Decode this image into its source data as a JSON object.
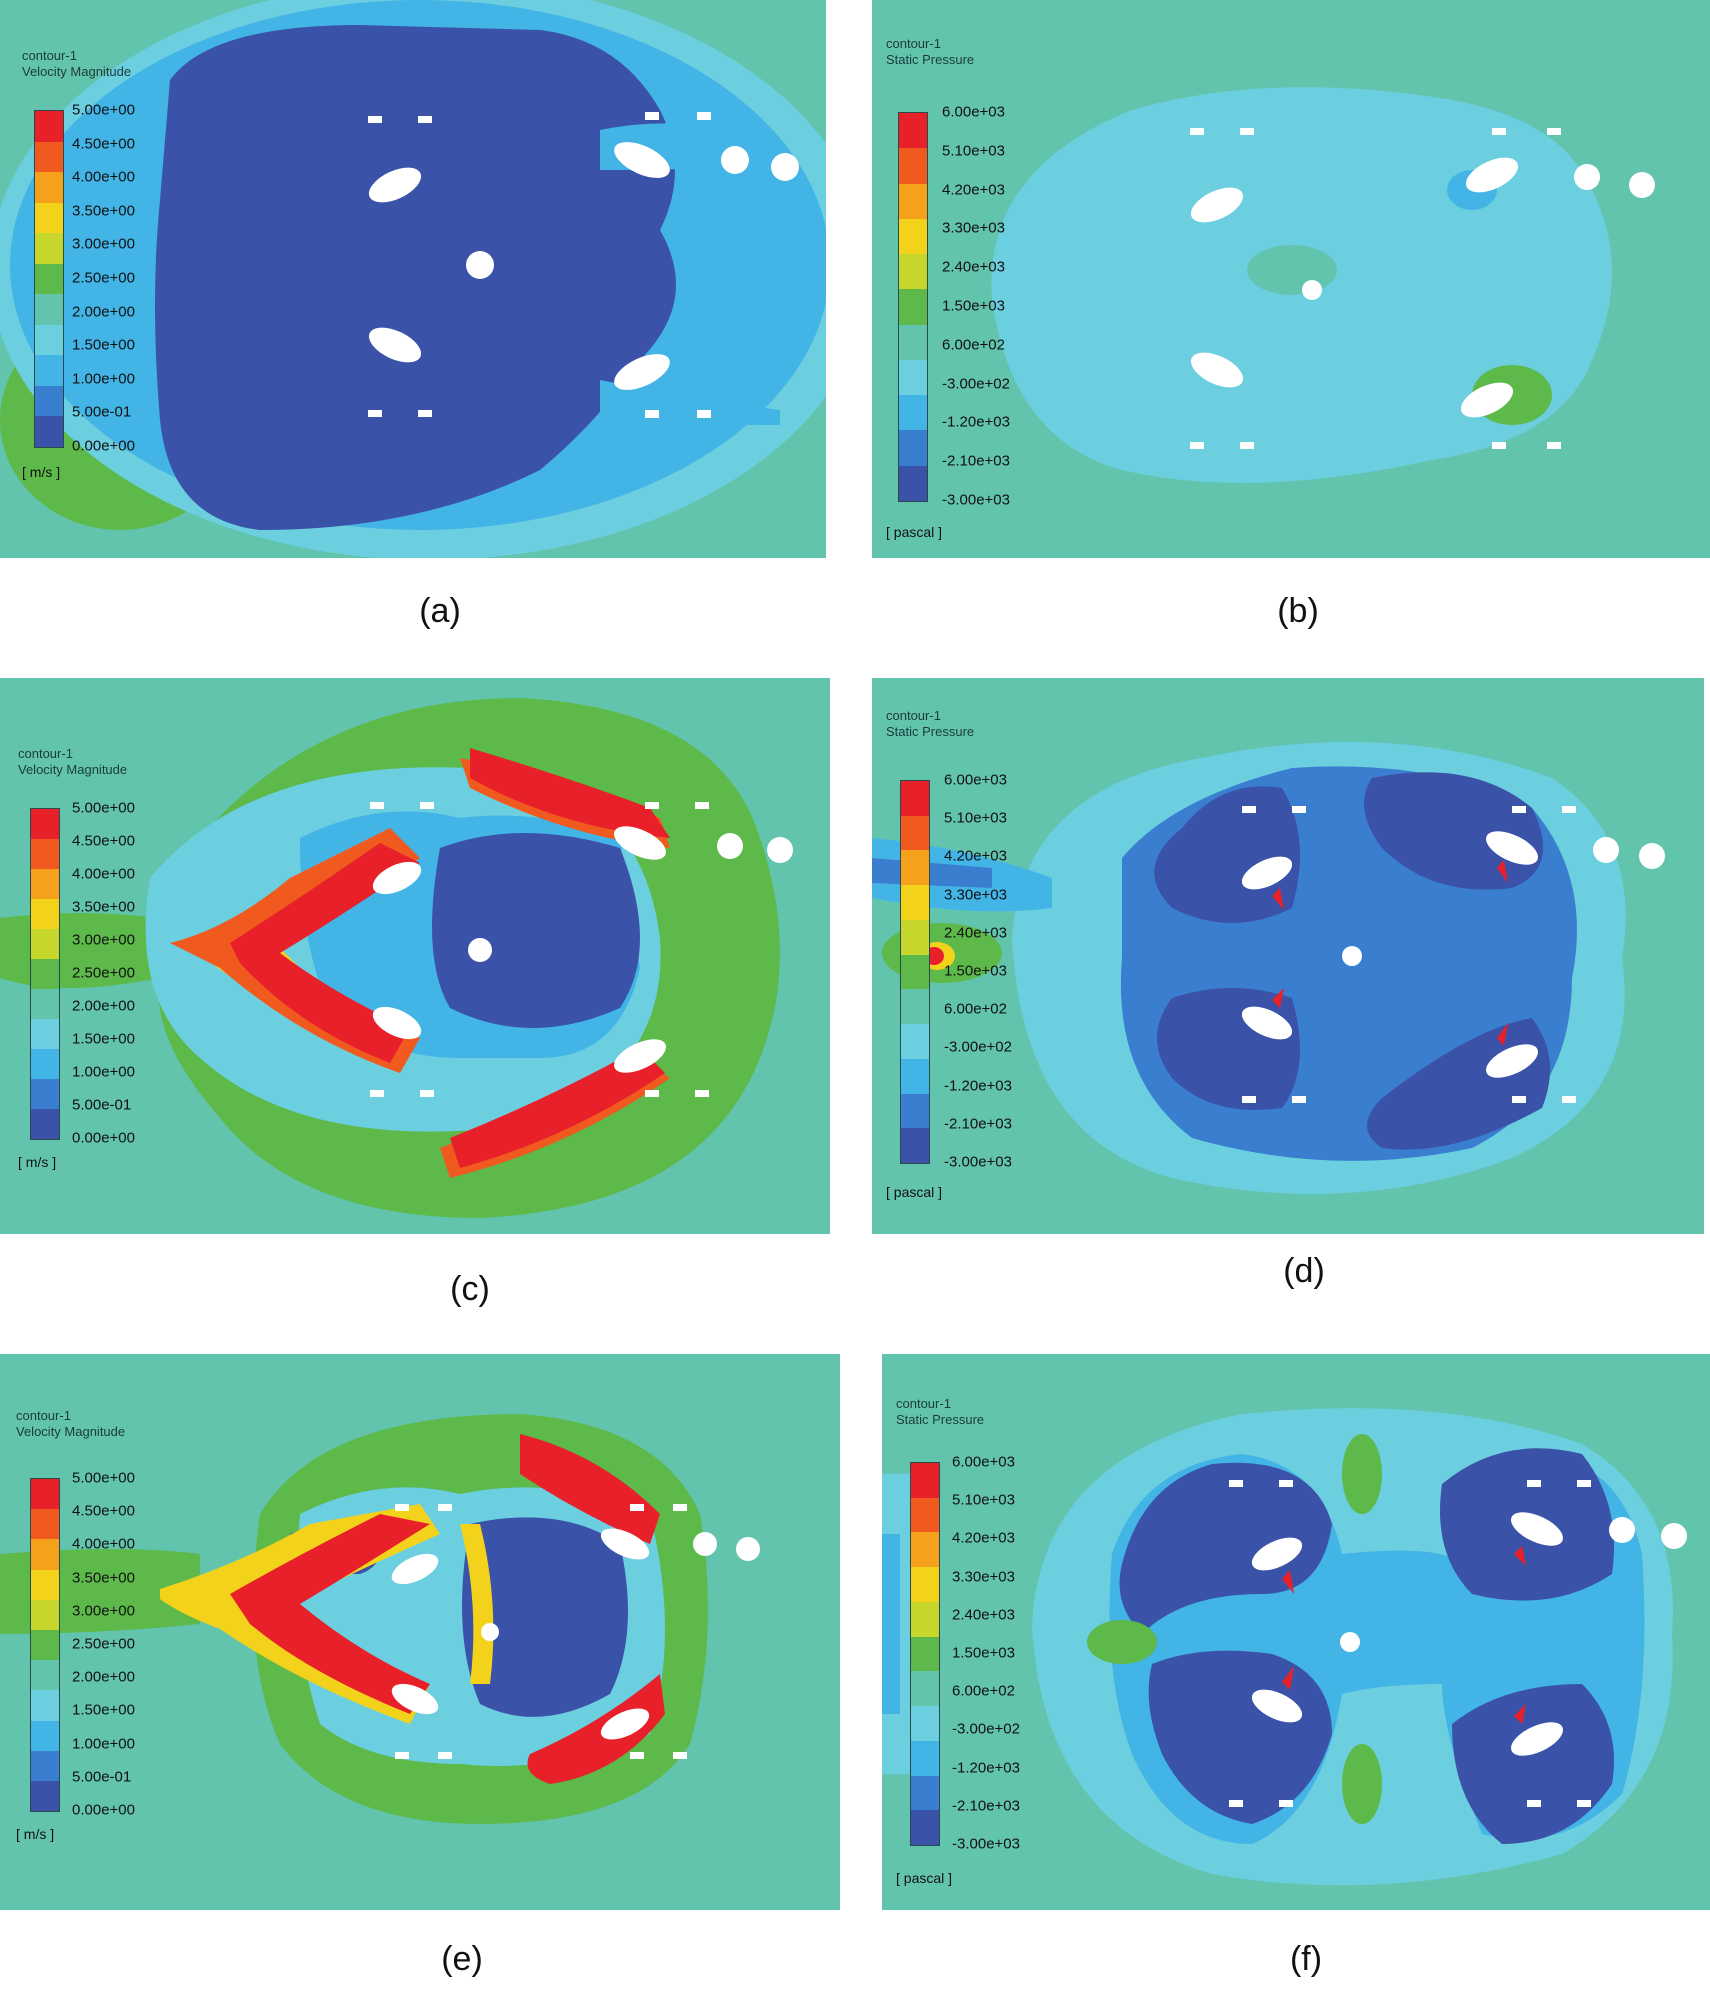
{
  "figure": {
    "panels": [
      {
        "id": "a",
        "caption": "(a)",
        "contour": "contour-1",
        "variable": "Velocity Magnitude",
        "unit": "[ m/s ]",
        "ticks": [
          "5.00e+00",
          "4.50e+00",
          "4.00e+00",
          "3.50e+00",
          "3.00e+00",
          "2.50e+00",
          "2.00e+00",
          "1.50e+00",
          "1.00e+00",
          "5.00e-01",
          "0.00e+00"
        ]
      },
      {
        "id": "b",
        "caption": "(b)",
        "contour": "contour-1",
        "variable": "Static Pressure",
        "unit": "[ pascal ]",
        "ticks": [
          "6.00e+03",
          "5.10e+03",
          "4.20e+03",
          "3.30e+03",
          "2.40e+03",
          "1.50e+03",
          "6.00e+02",
          "-3.00e+02",
          "-1.20e+03",
          "-2.10e+03",
          "-3.00e+03"
        ]
      },
      {
        "id": "c",
        "caption": "(c)",
        "contour": "contour-1",
        "variable": "Velocity Magnitude",
        "unit": "[ m/s ]",
        "ticks": [
          "5.00e+00",
          "4.50e+00",
          "4.00e+00",
          "3.50e+00",
          "3.00e+00",
          "2.50e+00",
          "2.00e+00",
          "1.50e+00",
          "1.00e+00",
          "5.00e-01",
          "0.00e+00"
        ]
      },
      {
        "id": "d",
        "caption": "(d)",
        "contour": "contour-1",
        "variable": "Static Pressure",
        "unit": "[ pascal ]",
        "ticks": [
          "6.00e+03",
          "5.10e+03",
          "4.20e+03",
          "3.30e+03",
          "2.40e+03",
          "1.50e+03",
          "6.00e+02",
          "-3.00e+02",
          "-1.20e+03",
          "-2.10e+03",
          "-3.00e+03"
        ]
      },
      {
        "id": "e",
        "caption": "(e)",
        "contour": "contour-1",
        "variable": "Velocity Magnitude",
        "unit": "[ m/s ]",
        "ticks": [
          "5.00e+00",
          "4.50e+00",
          "4.00e+00",
          "3.50e+00",
          "3.00e+00",
          "2.50e+00",
          "2.00e+00",
          "1.50e+00",
          "1.00e+00",
          "5.00e-01",
          "0.00e+00"
        ]
      },
      {
        "id": "f",
        "caption": "(f)",
        "contour": "contour-1",
        "variable": "Static Pressure",
        "unit": "[ pascal ]",
        "ticks": [
          "6.00e+03",
          "5.10e+03",
          "4.20e+03",
          "3.30e+03",
          "2.40e+03",
          "1.50e+03",
          "6.00e+02",
          "-3.00e+02",
          "-1.20e+03",
          "-2.10e+03",
          "-3.00e+03"
        ]
      }
    ],
    "colormap": [
      "#e8202a",
      "#f05a1e",
      "#f5a11c",
      "#f3d21c",
      "#c7d62b",
      "#5cb94a",
      "#62c4ad",
      "#6ccfe0",
      "#43b4e6",
      "#3a7fcf",
      "#3a52a8"
    ]
  }
}
